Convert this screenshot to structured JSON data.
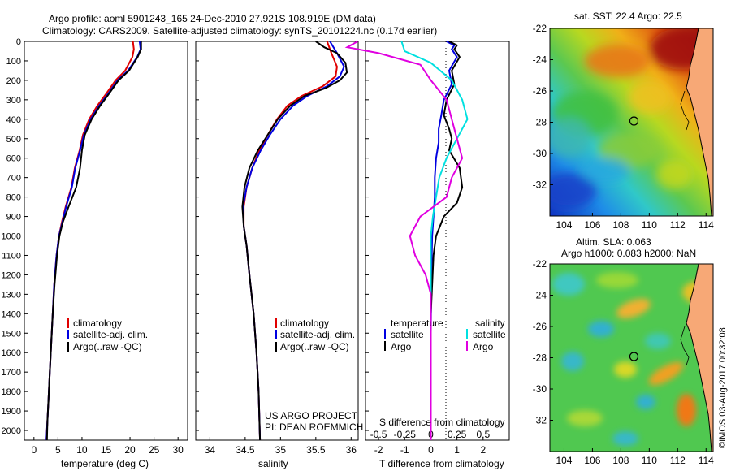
{
  "header": {
    "line1": "Argo profile: aoml 5901243_165 24-Dec-2010 27.921S 108.919E (DM data)",
    "line2": "Climatology: CARS2009. Satellite-adjusted climatology: synTS_20101224.nc (0.17d earlier)"
  },
  "credits": {
    "project": "US ARGO PROJECT",
    "pi": "PI: DEAN ROEMMICH",
    "imos": "©IMOS 03-Aug-2017 00:32:08"
  },
  "colors": {
    "climatology": "#e00000",
    "satellite": "#0000e0",
    "argo": "#000000",
    "satellite_salinity": "#00e0e0",
    "argo_salinity": "#e000e0"
  },
  "chart_data": [
    {
      "type": "line",
      "title": "",
      "xlabel": "temperature (deg C)",
      "ylabel": "",
      "xlim": [
        -2,
        32
      ],
      "ylim": [
        2050,
        0
      ],
      "xticks": [
        "0",
        "5",
        "10",
        "15",
        "20",
        "25",
        "30"
      ],
      "yticks": [
        "0",
        "100",
        "200",
        "300",
        "400",
        "500",
        "600",
        "700",
        "800",
        "900",
        "1000",
        "1100",
        "1200",
        "1300",
        "1400",
        "1500",
        "1600",
        "1700",
        "1800",
        "1900",
        "2000"
      ],
      "legend": [
        "climatology",
        "satellite-adj. clim.",
        "Argo(..raw -QC)"
      ],
      "legend_position": "bottom-center",
      "series": [
        {
          "name": "climatology",
          "color": "#e00000",
          "points": [
            [
              20.6,
              0
            ],
            [
              20.8,
              40
            ],
            [
              20.5,
              80
            ],
            [
              19.0,
              150
            ],
            [
              17.0,
              200
            ],
            [
              15.0,
              270
            ],
            [
              13.2,
              330
            ],
            [
              11.5,
              400
            ],
            [
              10.2,
              480
            ],
            [
              9.5,
              560
            ],
            [
              8.5,
              650
            ],
            [
              7.8,
              750
            ],
            [
              6.6,
              850
            ],
            [
              5.8,
              930
            ],
            [
              5.2,
              1000
            ],
            [
              4.7,
              1100
            ],
            [
              4.2,
              1250
            ],
            [
              3.9,
              1400
            ],
            [
              3.6,
              1550
            ],
            [
              3.3,
              1700
            ],
            [
              3.0,
              1850
            ],
            [
              2.8,
              1950
            ],
            [
              2.6,
              2050
            ]
          ]
        },
        {
          "name": "satellite-adj. clim.",
          "color": "#0000e0",
          "points": [
            [
              22.0,
              0
            ],
            [
              22.2,
              40
            ],
            [
              21.5,
              80
            ],
            [
              19.6,
              150
            ],
            [
              17.4,
              200
            ],
            [
              15.4,
              270
            ],
            [
              13.6,
              330
            ],
            [
              11.8,
              400
            ],
            [
              10.4,
              480
            ],
            [
              9.6,
              560
            ],
            [
              8.6,
              650
            ],
            [
              7.9,
              750
            ],
            [
              6.7,
              850
            ],
            [
              5.9,
              930
            ],
            [
              5.2,
              1000
            ],
            [
              4.7,
              1100
            ],
            [
              4.2,
              1250
            ],
            [
              3.9,
              1400
            ],
            [
              3.6,
              1550
            ],
            [
              3.3,
              1700
            ],
            [
              3.0,
              1850
            ],
            [
              2.8,
              1950
            ],
            [
              2.6,
              2050
            ]
          ]
        },
        {
          "name": "Argo(..raw -QC)",
          "color": "#000000",
          "points": [
            [
              22.3,
              0
            ],
            [
              22.3,
              40
            ],
            [
              21.6,
              80
            ],
            [
              19.8,
              150
            ],
            [
              17.6,
              200
            ],
            [
              15.6,
              270
            ],
            [
              13.8,
              330
            ],
            [
              12.0,
              400
            ],
            [
              10.6,
              480
            ],
            [
              10.0,
              560
            ],
            [
              9.6,
              650
            ],
            [
              8.8,
              750
            ],
            [
              7.2,
              850
            ],
            [
              6.0,
              930
            ],
            [
              5.3,
              1000
            ],
            [
              4.8,
              1100
            ],
            [
              4.3,
              1250
            ],
            [
              3.9,
              1400
            ],
            [
              3.6,
              1550
            ],
            [
              3.3,
              1700
            ],
            [
              3.0,
              1850
            ],
            [
              2.8,
              1950
            ],
            [
              2.7,
              2050
            ]
          ]
        }
      ]
    },
    {
      "type": "line",
      "title": "",
      "xlabel": "salinity",
      "ylabel": "",
      "xlim": [
        33.8,
        36.1
      ],
      "ylim": [
        2050,
        0
      ],
      "xticks": [
        "34",
        "34.5",
        "35",
        "35.5",
        "36"
      ],
      "legend": [
        "climatology",
        "satellite-adj. clim.",
        "Argo(..raw -QC)"
      ],
      "legend_position": "bottom-center",
      "series": [
        {
          "name": "climatology",
          "color": "#e00000",
          "points": [
            [
              35.66,
              0
            ],
            [
              35.72,
              60
            ],
            [
              35.8,
              130
            ],
            [
              35.78,
              180
            ],
            [
              35.6,
              230
            ],
            [
              35.3,
              280
            ],
            [
              35.1,
              330
            ],
            [
              34.95,
              400
            ],
            [
              34.82,
              480
            ],
            [
              34.7,
              560
            ],
            [
              34.6,
              650
            ],
            [
              34.52,
              750
            ],
            [
              34.48,
              850
            ],
            [
              34.48,
              950
            ],
            [
              34.52,
              1050
            ],
            [
              34.56,
              1200
            ],
            [
              34.62,
              1400
            ],
            [
              34.66,
              1600
            ],
            [
              34.69,
              1800
            ],
            [
              34.71,
              2050
            ]
          ]
        },
        {
          "name": "satellite-adj. clim.",
          "color": "#0000e0",
          "points": [
            [
              35.7,
              0
            ],
            [
              35.8,
              60
            ],
            [
              35.9,
              130
            ],
            [
              35.84,
              180
            ],
            [
              35.66,
              230
            ],
            [
              35.38,
              280
            ],
            [
              35.18,
              330
            ],
            [
              35.0,
              400
            ],
            [
              34.85,
              480
            ],
            [
              34.72,
              560
            ],
            [
              34.6,
              650
            ],
            [
              34.52,
              750
            ],
            [
              34.47,
              850
            ],
            [
              34.48,
              950
            ],
            [
              34.52,
              1050
            ],
            [
              34.56,
              1200
            ],
            [
              34.62,
              1400
            ],
            [
              34.66,
              1600
            ],
            [
              34.69,
              1800
            ],
            [
              34.71,
              2050
            ]
          ]
        },
        {
          "name": "Argo(..raw -QC)",
          "color": "#000000",
          "points": [
            [
              35.5,
              0
            ],
            [
              35.62,
              30
            ],
            [
              35.8,
              60
            ],
            [
              35.92,
              110
            ],
            [
              35.94,
              160
            ],
            [
              35.84,
              200
            ],
            [
              35.64,
              240
            ],
            [
              35.34,
              280
            ],
            [
              35.14,
              330
            ],
            [
              34.96,
              400
            ],
            [
              34.82,
              480
            ],
            [
              34.68,
              560
            ],
            [
              34.56,
              650
            ],
            [
              34.49,
              750
            ],
            [
              34.46,
              850
            ],
            [
              34.48,
              950
            ],
            [
              34.52,
              1050
            ],
            [
              34.56,
              1200
            ],
            [
              34.62,
              1400
            ],
            [
              34.66,
              1600
            ],
            [
              34.69,
              1800
            ],
            [
              34.71,
              2050
            ]
          ]
        }
      ]
    },
    {
      "type": "line",
      "title": "",
      "xlabel": "T difference from climatology",
      "x2label": "S difference from climatology",
      "ylabel": "",
      "xlim": [
        -2.5,
        3
      ],
      "x2lim": [
        -0.625,
        0.75
      ],
      "ylim": [
        2050,
        0
      ],
      "xticks": [
        "-2",
        "-1",
        "0",
        "1",
        "2"
      ],
      "x2ticks": [
        "-0.5",
        "-0.25",
        "0",
        "0.25",
        "0.5"
      ],
      "legend_temperature_heading": "temperature",
      "legend_salinity_heading": "salinity",
      "legend_temperature": [
        "satellite",
        "Argo"
      ],
      "legend_salinity": [
        "satellite",
        "Argo"
      ],
      "legend_position": "bottom-center",
      "series": [
        {
          "name": "satellite",
          "group": "temperature",
          "color": "#0000e0",
          "points": [
            [
              0.6,
              0
            ],
            [
              0.9,
              20
            ],
            [
              0.8,
              40
            ],
            [
              1.0,
              80
            ],
            [
              0.7,
              150
            ],
            [
              0.8,
              220
            ],
            [
              0.5,
              300
            ],
            [
              0.4,
              380
            ],
            [
              0.3,
              450
            ],
            [
              0.3,
              520
            ],
            [
              0.2,
              600
            ],
            [
              0.15,
              700
            ],
            [
              0.15,
              800
            ],
            [
              0.1,
              900
            ],
            [
              0.05,
              1000
            ],
            [
              0.02,
              1200
            ],
            [
              0.0,
              1500
            ],
            [
              0.0,
              2050
            ]
          ]
        },
        {
          "name": "Argo",
          "group": "temperature",
          "color": "#000000",
          "points": [
            [
              0.7,
              0
            ],
            [
              1.0,
              20
            ],
            [
              0.9,
              40
            ],
            [
              1.1,
              80
            ],
            [
              0.8,
              150
            ],
            [
              0.9,
              220
            ],
            [
              0.6,
              300
            ],
            [
              0.5,
              380
            ],
            [
              0.7,
              450
            ],
            [
              0.8,
              500
            ],
            [
              0.7,
              560
            ],
            [
              1.1,
              650
            ],
            [
              1.2,
              750
            ],
            [
              1.0,
              830
            ],
            [
              0.5,
              900
            ],
            [
              0.2,
              1000
            ],
            [
              0.1,
              1100
            ],
            [
              0.05,
              1250
            ],
            [
              0.0,
              1400
            ],
            [
              0.0,
              2050
            ]
          ]
        },
        {
          "name": "satellite",
          "group": "salinity",
          "color": "#00e0e0",
          "points": [
            [
              -0.28,
              0
            ],
            [
              -0.25,
              50
            ],
            [
              0.0,
              110
            ],
            [
              0.2,
              200
            ],
            [
              0.3,
              300
            ],
            [
              0.35,
              400
            ],
            [
              0.25,
              500
            ],
            [
              0.15,
              600
            ],
            [
              0.08,
              700
            ],
            [
              0.05,
              800
            ],
            [
              0.02,
              900
            ],
            [
              0.0,
              1000
            ],
            [
              0.0,
              2050
            ]
          ]
        },
        {
          "name": "Argo",
          "group": "salinity",
          "color": "#e000e0",
          "points": [
            [
              -0.7,
              0
            ],
            [
              -0.8,
              30
            ],
            [
              -0.5,
              60
            ],
            [
              -0.1,
              120
            ],
            [
              0.0,
              200
            ],
            [
              0.15,
              300
            ],
            [
              0.2,
              400
            ],
            [
              0.25,
              500
            ],
            [
              0.3,
              600
            ],
            [
              0.2,
              700
            ],
            [
              0.15,
              800
            ],
            [
              -0.1,
              900
            ],
            [
              -0.2,
              1000
            ],
            [
              -0.15,
              1100
            ],
            [
              -0.05,
              1200
            ],
            [
              0.0,
              1300
            ],
            [
              0.0,
              2050
            ]
          ]
        }
      ]
    },
    {
      "type": "heatmap",
      "title": "sat. SST: 22.4  Argo: 22.5",
      "xticks": [
        "104",
        "106",
        "108",
        "110",
        "112",
        "114"
      ],
      "yticks": [
        "-22",
        "-24",
        "-26",
        "-28",
        "-30",
        "-32"
      ],
      "xlim": [
        103,
        114.5
      ],
      "ylim": [
        -34,
        -22
      ],
      "marker": {
        "lon": 108.919,
        "lat": -27.921
      }
    },
    {
      "type": "heatmap",
      "title": "Altim. SLA: 0.063",
      "subtitle": "Argo h1000: 0.083 h2000: NaN",
      "xticks": [
        "104",
        "106",
        "108",
        "110",
        "112",
        "114"
      ],
      "yticks": [
        "-22",
        "-24",
        "-26",
        "-28",
        "-30",
        "-32"
      ],
      "xlim": [
        103,
        114.5
      ],
      "ylim": [
        -34,
        -22
      ],
      "marker": {
        "lon": 108.919,
        "lat": -27.921
      }
    }
  ]
}
